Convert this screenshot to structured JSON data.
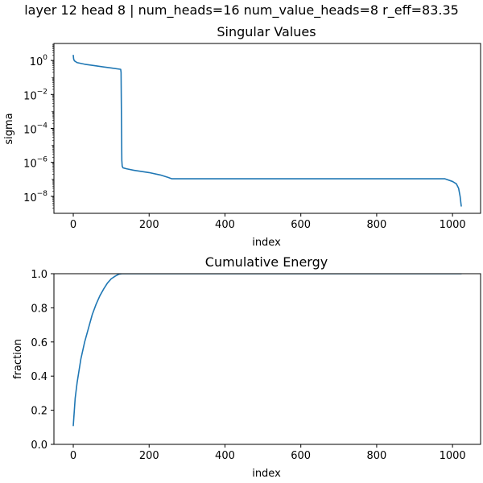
{
  "suptitle": "layer 12 head 8 | num_heads=16 num_value_heads=8 r_eff=83.35",
  "colors": {
    "series": "#1f77b4"
  },
  "chart_data": [
    {
      "type": "line",
      "title": "Singular Values",
      "xlabel": "index",
      "ylabel": "sigma",
      "yscale": "log",
      "xlim": [
        -51,
        1074
      ],
      "ylim": [
        1e-09,
        10
      ],
      "xticks": [
        0,
        200,
        400,
        600,
        800,
        1000
      ],
      "yticks": [
        {
          "value": 1,
          "base": "10",
          "exp": "0"
        },
        {
          "value": 0.01,
          "base": "10",
          "exp": "−2"
        },
        {
          "value": 0.0001,
          "base": "10",
          "exp": "−4"
        },
        {
          "value": 1e-06,
          "base": "10",
          "exp": "−6"
        },
        {
          "value": 1e-08,
          "base": "10",
          "exp": "−8"
        }
      ],
      "grid": false,
      "series": [
        {
          "x": [
            0,
            1,
            3,
            10,
            30,
            60,
            100,
            125,
            126,
            128,
            129,
            131,
            140,
            160,
            200,
            230,
            250,
            260,
            300,
            500,
            800,
            980,
            1000,
            1010,
            1016,
            1020,
            1023
          ],
          "y": [
            2.0,
            1.2,
            0.95,
            0.75,
            0.6,
            0.48,
            0.36,
            0.3,
            0.2,
            1.3e-06,
            6e-07,
            4.8e-07,
            4.2e-07,
            3.4e-07,
            2.5e-07,
            1.8e-07,
            1.3e-07,
            1.08e-07,
            1.08e-07,
            1.08e-07,
            1.08e-07,
            1.08e-07,
            7.5e-08,
            5.5e-08,
            3e-08,
            1e-08,
            2.7e-09
          ]
        }
      ]
    },
    {
      "type": "line",
      "title": "Cumulative Energy",
      "xlabel": "index",
      "ylabel": "fraction",
      "xlim": [
        -51,
        1074
      ],
      "ylim": [
        0.0,
        1.0
      ],
      "xticks": [
        0,
        200,
        400,
        600,
        800,
        1000
      ],
      "yticks": [
        0.0,
        0.2,
        0.4,
        0.6,
        0.8,
        1.0
      ],
      "ytick_labels": [
        "0.0",
        "0.2",
        "0.4",
        "0.6",
        "0.8",
        "1.0"
      ],
      "grid": false,
      "series": [
        {
          "x": [
            0,
            5,
            10,
            20,
            30,
            40,
            50,
            60,
            70,
            80,
            90,
            100,
            110,
            120,
            128,
            200,
            1023
          ],
          "y": [
            0.11,
            0.27,
            0.36,
            0.5,
            0.6,
            0.68,
            0.76,
            0.82,
            0.87,
            0.91,
            0.945,
            0.97,
            0.985,
            0.997,
            1.0,
            1.0,
            1.0
          ]
        }
      ]
    }
  ]
}
